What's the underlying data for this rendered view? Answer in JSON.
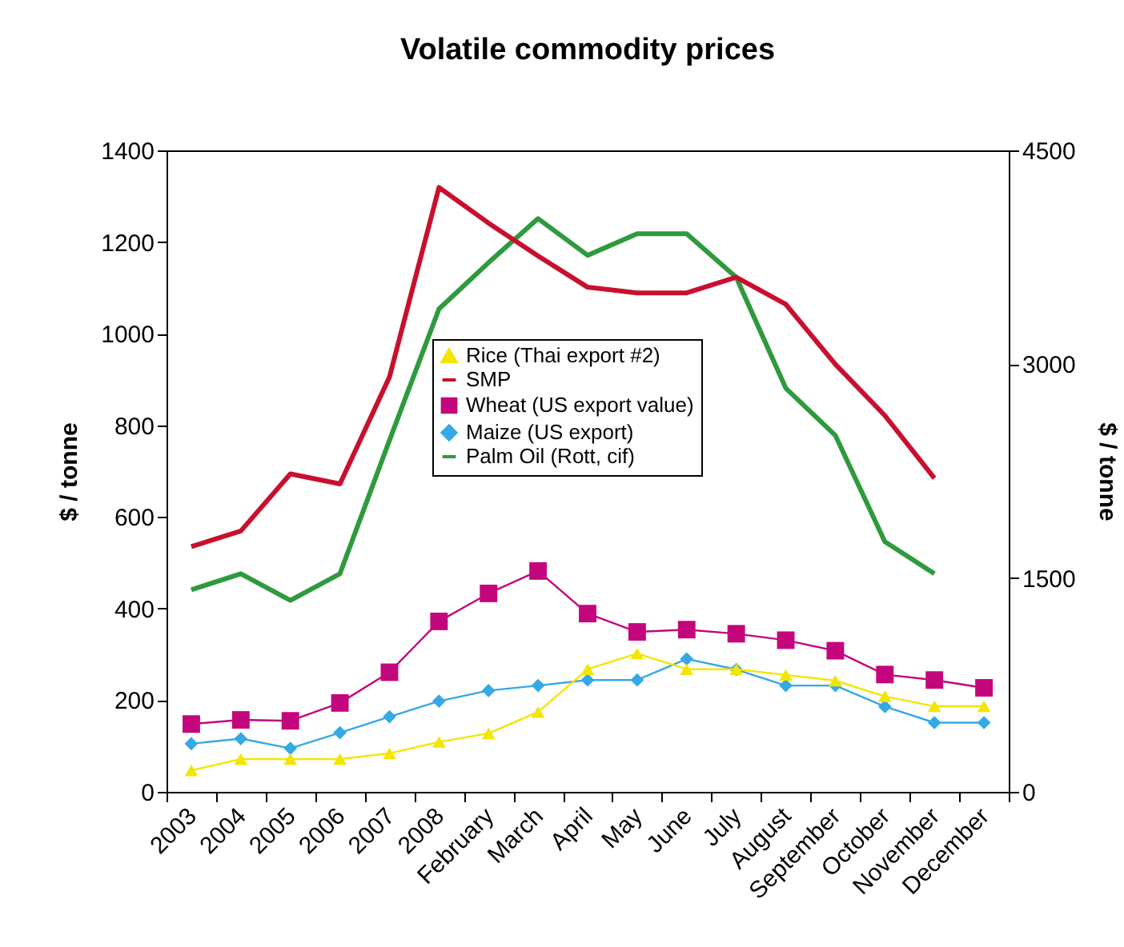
{
  "chart_data": {
    "type": "line",
    "title": "Volatile commodity prices",
    "ylabel": "$ / tonne",
    "y2label": "$ / tonne",
    "categories": [
      "2003",
      "2004",
      "2005",
      "2006",
      "2007",
      "2008",
      "February",
      "March",
      "April",
      "May",
      "June",
      "July",
      "August",
      "September",
      "October",
      "November",
      "December"
    ],
    "series": [
      {
        "name": "Rice (Thai export #2)",
        "color": "#f2e600",
        "marker": "triangle",
        "axis": "y2",
        "values": [
          150,
          230,
          230,
          230,
          270,
          350,
          410,
          560,
          860,
          970,
          860,
          860,
          820,
          780,
          670,
          600,
          600
        ]
      },
      {
        "name": "SMP",
        "color": "#c8102e",
        "marker": "none",
        "axis": "y2",
        "values": [
          1720,
          1830,
          2230,
          2160,
          2910,
          4240,
          3990,
          3760,
          3540,
          3500,
          3500,
          3610,
          3420,
          3000,
          2640,
          2200,
          null
        ]
      },
      {
        "name": "Wheat (US export value)",
        "color": "#c4067c",
        "marker": "square",
        "values": [
          148,
          157,
          155,
          194,
          261,
          372,
          433,
          482,
          389,
          349,
          354,
          345,
          331,
          308,
          256,
          244,
          227
        ]
      },
      {
        "name": "Maize (US export)",
        "color": "#35a8e6",
        "marker": "diamond",
        "values": [
          105,
          116,
          95,
          129,
          164,
          198,
          221,
          232,
          244,
          244,
          290,
          267,
          232,
          232,
          186,
          151,
          151
        ]
      },
      {
        "name": "Palm Oil (Rott, cif)",
        "color": "#2e9a3e",
        "marker": "none",
        "values": [
          441,
          476,
          418,
          476,
          767,
          1054,
          1155,
          1251,
          1171,
          1218,
          1218,
          1123,
          881,
          778,
          546,
          476,
          null
        ]
      }
    ],
    "ylim": [
      0,
      1400
    ],
    "yticks": [
      0,
      200,
      400,
      600,
      800,
      1000,
      1200,
      1400
    ],
    "y2lim": [
      0,
      4500
    ],
    "y2ticks": [
      0,
      1500,
      3000,
      4500
    ],
    "legend": "top",
    "grid": false
  }
}
